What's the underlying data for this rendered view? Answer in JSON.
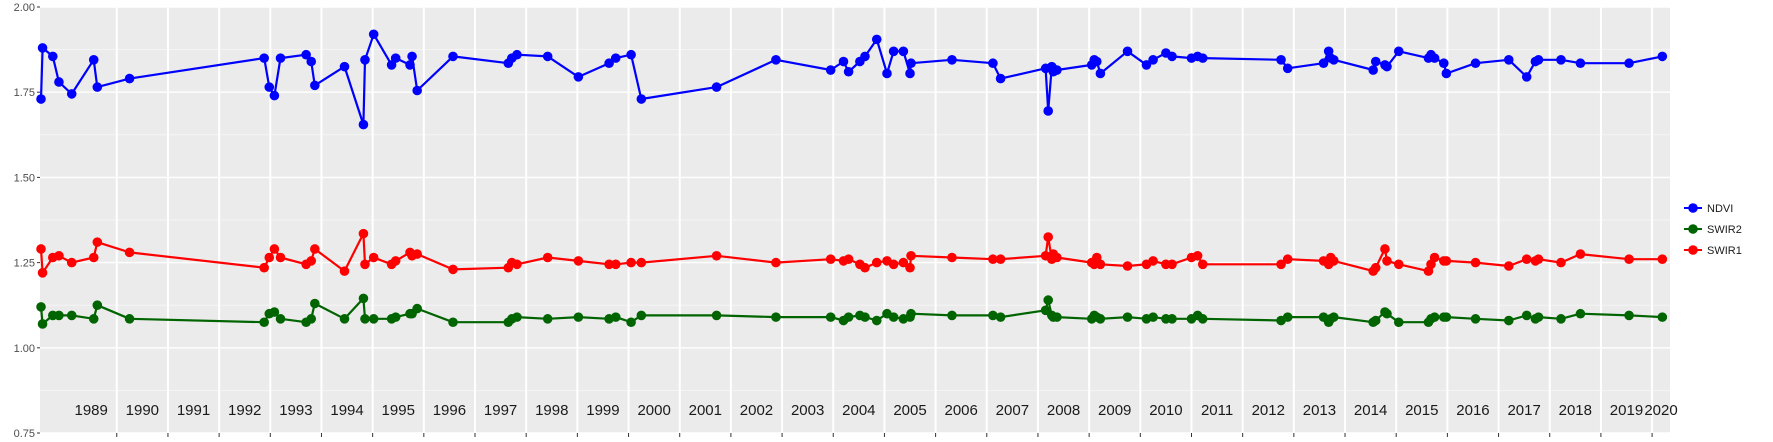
{
  "chart_data": {
    "type": "line",
    "title": "",
    "xlabel": "",
    "ylabel": "",
    "ylim": [
      0.75,
      2.0
    ],
    "xlim": [
      1988.5,
      2020.35
    ],
    "yticks": [
      0.75,
      1.0,
      1.25,
      1.5,
      1.75,
      2.0
    ],
    "ytick_labels": [
      "0.75",
      "1.00",
      "1.25",
      "1.50",
      "1.75",
      "2.00"
    ],
    "year_labels": [
      "1989",
      "1990",
      "1991",
      "1992",
      "1993",
      "1994",
      "1995",
      "1996",
      "1997",
      "1998",
      "1999",
      "2000",
      "2001",
      "2002",
      "2003",
      "2004",
      "2005",
      "2006",
      "2007",
      "2008",
      "2009",
      "2010",
      "2011",
      "2012",
      "2013",
      "2014",
      "2015",
      "2016",
      "2017",
      "2018",
      "2019",
      "2020"
    ],
    "grid": true,
    "legend_position": "right",
    "x": [
      1988.52,
      1988.55,
      1988.75,
      1988.87,
      1989.12,
      1989.55,
      1989.62,
      1990.25,
      1992.88,
      1992.98,
      1993.08,
      1993.2,
      1993.7,
      1993.8,
      1993.87,
      1994.45,
      1994.82,
      1994.85,
      1995.02,
      1995.37,
      1995.45,
      1995.73,
      1995.77,
      1995.87,
      1996.57,
      1997.65,
      1997.72,
      1997.82,
      1998.42,
      1999.02,
      1999.62,
      1999.75,
      2000.05,
      2000.25,
      2001.72,
      2002.88,
      2003.95,
      2004.2,
      2004.3,
      2004.52,
      2004.62,
      2004.85,
      2005.05,
      2005.18,
      2005.37,
      2005.5,
      2005.52,
      2006.32,
      2007.12,
      2007.27,
      2008.15,
      2008.2,
      2008.27,
      2008.3,
      2008.37,
      2009.05,
      2009.1,
      2009.15,
      2009.22,
      2009.75,
      2010.12,
      2010.25,
      2010.5,
      2010.62,
      2011.0,
      2011.12,
      2011.22,
      2012.75,
      2012.88,
      2013.58,
      2013.68,
      2013.72,
      2013.78,
      2014.55,
      2014.6,
      2014.78,
      2014.82,
      2015.05,
      2015.63,
      2015.68,
      2015.75,
      2015.93,
      2015.98,
      2016.55,
      2017.2,
      2017.55,
      2017.72,
      2017.78,
      2018.22,
      2018.6,
      2019.55,
      2020.2
    ],
    "series": [
      {
        "name": "NDVI",
        "color": "#0000FF",
        "values": [
          1.73,
          1.88,
          1.855,
          1.78,
          1.745,
          1.845,
          1.765,
          1.79,
          1.85,
          1.765,
          1.74,
          1.85,
          1.86,
          1.84,
          1.77,
          1.825,
          1.655,
          1.845,
          1.92,
          1.83,
          1.85,
          1.83,
          1.855,
          1.755,
          1.855,
          1.835,
          1.85,
          1.86,
          1.855,
          1.795,
          1.835,
          1.85,
          1.86,
          1.73,
          1.765,
          1.845,
          1.815,
          1.84,
          1.81,
          1.84,
          1.855,
          1.905,
          1.805,
          1.87,
          1.87,
          1.805,
          1.835,
          1.845,
          1.835,
          1.79,
          1.82,
          1.695,
          1.825,
          1.81,
          1.815,
          1.83,
          1.845,
          1.84,
          1.805,
          1.87,
          1.83,
          1.845,
          1.865,
          1.855,
          1.85,
          1.855,
          1.85,
          1.845,
          1.82,
          1.835,
          1.87,
          1.85,
          1.845,
          1.815,
          1.84,
          1.83,
          1.825,
          1.87,
          1.85,
          1.86,
          1.85,
          1.835,
          1.805,
          1.835,
          1.845,
          1.795,
          1.84,
          1.845,
          1.845,
          1.835,
          1.835,
          1.855
        ]
      },
      {
        "name": "SWIR2",
        "color": "#006400",
        "values": [
          1.12,
          1.07,
          1.095,
          1.095,
          1.095,
          1.085,
          1.125,
          1.085,
          1.075,
          1.1,
          1.105,
          1.085,
          1.075,
          1.085,
          1.13,
          1.085,
          1.145,
          1.085,
          1.085,
          1.085,
          1.09,
          1.1,
          1.1,
          1.115,
          1.075,
          1.075,
          1.085,
          1.09,
          1.085,
          1.09,
          1.085,
          1.09,
          1.075,
          1.095,
          1.095,
          1.09,
          1.09,
          1.08,
          1.09,
          1.095,
          1.09,
          1.08,
          1.1,
          1.09,
          1.085,
          1.09,
          1.1,
          1.095,
          1.095,
          1.09,
          1.11,
          1.14,
          1.095,
          1.09,
          1.09,
          1.085,
          1.095,
          1.09,
          1.085,
          1.09,
          1.085,
          1.09,
          1.085,
          1.085,
          1.085,
          1.095,
          1.085,
          1.08,
          1.09,
          1.09,
          1.075,
          1.085,
          1.09,
          1.075,
          1.08,
          1.105,
          1.1,
          1.075,
          1.075,
          1.085,
          1.09,
          1.09,
          1.09,
          1.085,
          1.08,
          1.095,
          1.085,
          1.09,
          1.085,
          1.1,
          1.095,
          1.09
        ]
      },
      {
        "name": "SWIR1",
        "color": "#FF0000",
        "values": [
          1.29,
          1.22,
          1.265,
          1.27,
          1.25,
          1.265,
          1.31,
          1.28,
          1.235,
          1.265,
          1.29,
          1.265,
          1.245,
          1.255,
          1.29,
          1.225,
          1.335,
          1.245,
          1.265,
          1.245,
          1.255,
          1.28,
          1.27,
          1.275,
          1.23,
          1.235,
          1.25,
          1.245,
          1.265,
          1.255,
          1.245,
          1.245,
          1.25,
          1.25,
          1.27,
          1.25,
          1.26,
          1.255,
          1.26,
          1.245,
          1.235,
          1.25,
          1.255,
          1.245,
          1.25,
          1.235,
          1.27,
          1.265,
          1.26,
          1.26,
          1.27,
          1.325,
          1.26,
          1.275,
          1.265,
          1.25,
          1.245,
          1.265,
          1.245,
          1.24,
          1.245,
          1.255,
          1.245,
          1.245,
          1.265,
          1.27,
          1.245,
          1.245,
          1.26,
          1.255,
          1.245,
          1.265,
          1.255,
          1.225,
          1.235,
          1.29,
          1.255,
          1.245,
          1.225,
          1.245,
          1.265,
          1.255,
          1.255,
          1.25,
          1.24,
          1.26,
          1.255,
          1.26,
          1.25,
          1.275,
          1.26,
          1.26
        ]
      }
    ]
  },
  "legend": {
    "items": [
      {
        "label": "NDVI",
        "color": "#0000FF"
      },
      {
        "label": "SWIR2",
        "color": "#006400"
      },
      {
        "label": "SWIR1",
        "color": "#FF0000"
      }
    ]
  },
  "theme": {
    "panel_bg": "#EBEBEB",
    "grid_major": "#FFFFFF",
    "axis_text": "#4D4D4D"
  }
}
